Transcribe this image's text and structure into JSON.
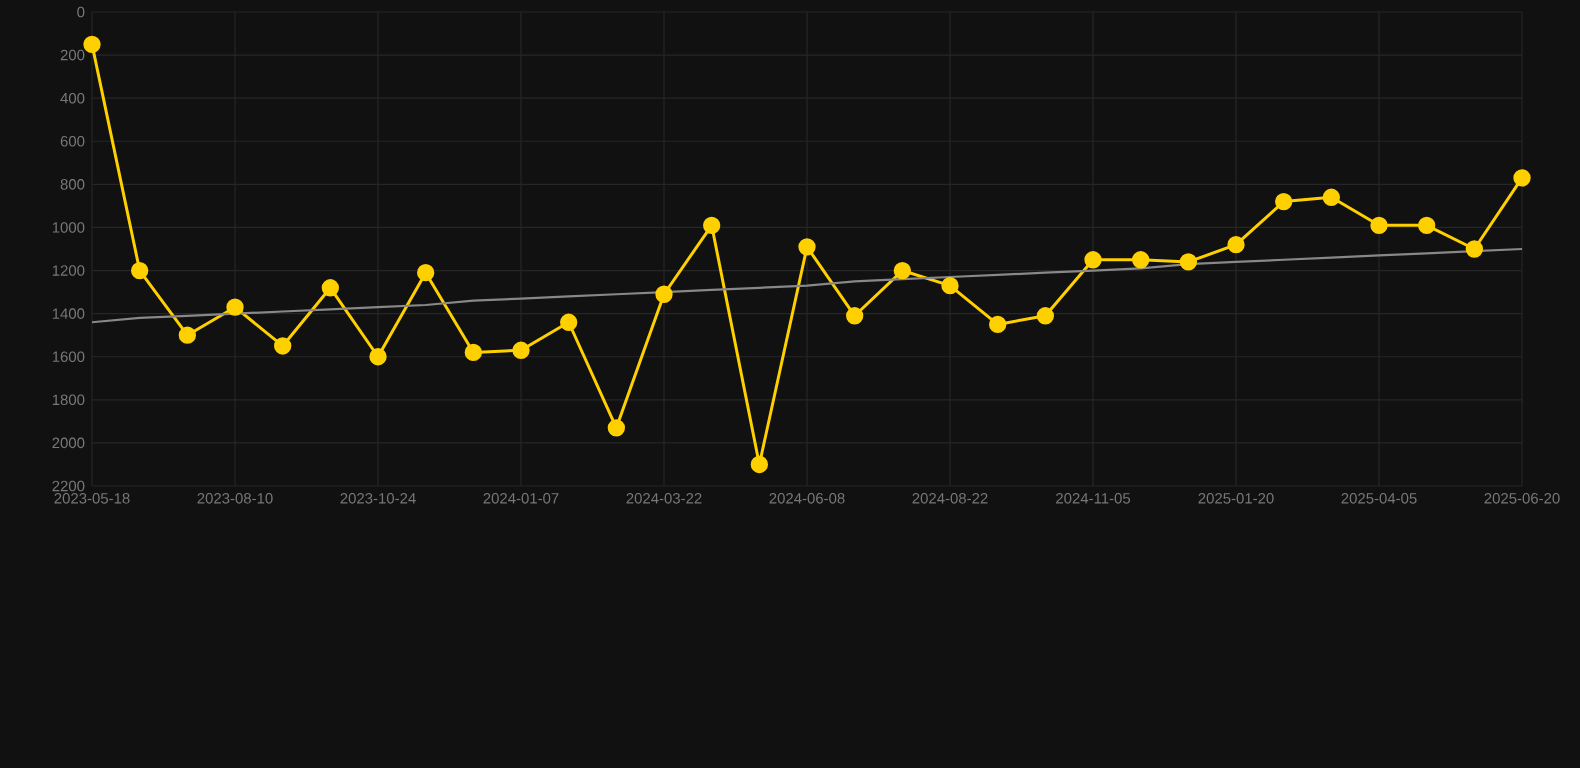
{
  "chart_data": {
    "type": "line",
    "categories": [
      "2023-05-18",
      null,
      null,
      "2023-08-10",
      null,
      null,
      "2023-10-24",
      null,
      null,
      "2024-01-07",
      null,
      null,
      "2024-03-22",
      null,
      null,
      "2024-06-08",
      null,
      null,
      "2024-08-22",
      null,
      null,
      "2024-11-05",
      null,
      null,
      "2025-01-20",
      null,
      null,
      "2025-04-05",
      null,
      null,
      "2025-06-20"
    ],
    "series": [
      {
        "color": "#ffd000",
        "marker": "circle",
        "values": [
          150,
          1200,
          1500,
          1370,
          1550,
          1280,
          1600,
          1210,
          1580,
          1570,
          1440,
          1930,
          1310,
          990,
          2100,
          1090,
          1410,
          1200,
          1270,
          1450,
          1410,
          1150,
          1150,
          1160,
          1080,
          880,
          860,
          990,
          990,
          1100,
          770
        ]
      },
      {
        "color": "#888888",
        "marker": "none",
        "values": [
          1440,
          1420,
          1410,
          1400,
          1390,
          1380,
          1370,
          1360,
          1340,
          1330,
          1320,
          1310,
          1300,
          1290,
          1280,
          1270,
          1250,
          1240,
          1230,
          1220,
          1210,
          1200,
          1190,
          1170,
          1160,
          1150,
          1140,
          1130,
          1120,
          1110,
          1100
        ]
      }
    ],
    "ylim": [
      2200,
      0
    ],
    "yticks": [
      0,
      200,
      400,
      600,
      800,
      1000,
      1200,
      1400,
      1600,
      1800,
      2000,
      2200
    ],
    "grid": true,
    "line_style": "solid"
  }
}
